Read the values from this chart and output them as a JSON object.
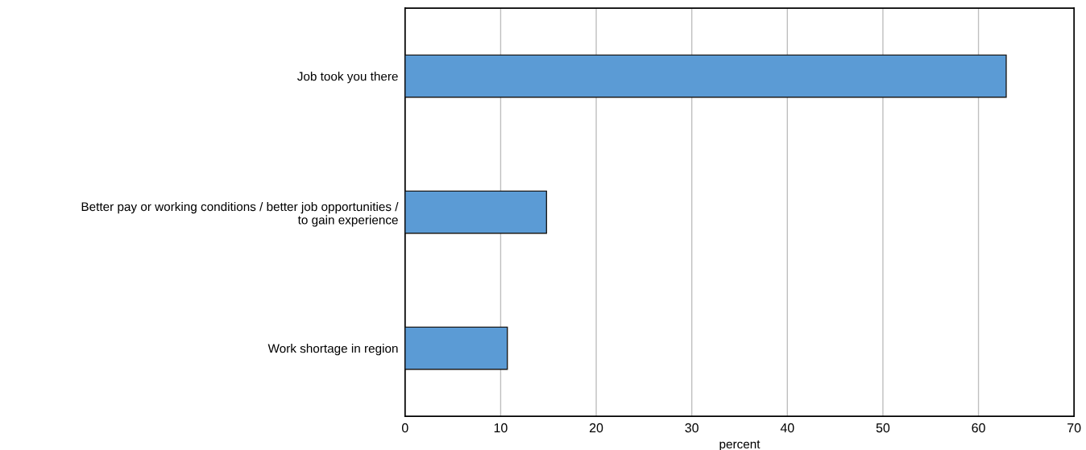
{
  "chart_data": {
    "type": "bar",
    "orientation": "horizontal",
    "xlabel": "percent",
    "categories": [
      "Job took you there",
      "Better pay or working conditions / better job opportunities /\nto gain experience",
      "Work shortage in region"
    ],
    "values": [
      62.9,
      14.8,
      10.7
    ],
    "color": "#5b9bd5",
    "xlim": [
      0,
      70
    ],
    "xticks": [
      0,
      10,
      20,
      30,
      40,
      50,
      60,
      70
    ],
    "grid": "x"
  }
}
